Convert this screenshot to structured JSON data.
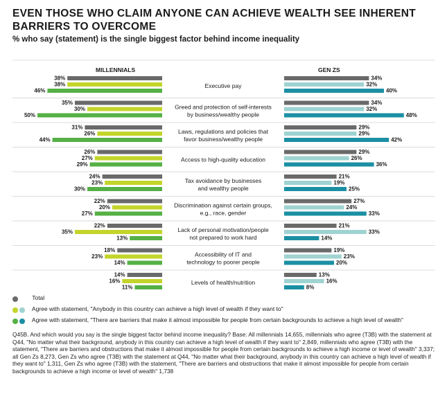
{
  "title": "EVEN THOSE WHO CLAIM ANYONE CAN ACHIEVE WEALTH SEE INHERENT BARRIERS TO OVERCOME",
  "subtitle": "% who say (statement) is the single biggest factor behind income inequality",
  "colors": {
    "mill_total": "#6a6a6a",
    "mill_agree": "#c3d52a",
    "mill_barriers": "#55b045",
    "gen_total": "#6a6a6a",
    "gen_agree": "#9fd3d2",
    "gen_barriers": "#1b8fa3"
  },
  "legend": {
    "total": "Total",
    "agree": "Agree with statement, \"Anybody in this country can achieve a high level of wealth if they want to\"",
    "barriers": "Agree with statement, \"There are barriers  that make it almost impossible for people from certain backgrounds to achieve a high level of wealth\""
  },
  "footnote": "Q45B. And which would you say is the single biggest factor behind income inequality? Base: All millennials 14,655, millennials who agree (T3B) with the statement at Q44, \"No matter what their background, anybody in this country can achieve a high level of wealth if they want to\" 2,849, millennials who agree (T3B) with the statement, \"There are barriers and obstructions that make it almost impossible for people from certain backgrounds to achieve a high income or level of wealth\" 3,337; all Gen Zs 8,273, Gen Zs who agree (T3B) with the statement at Q44, \"No matter what their background, anybody in this country can achieve a high level of wealth if they want to\" 1,311, Gen Zs who agree (T3B) with the statement, \"There are barriers and obstructions that make it almost impossible for people from certain backgrounds to achieve a high income or level of wealth\" 1,738",
  "chart_data": {
    "type": "bar",
    "orientation": "horizontal",
    "layout": "butterfly",
    "unit": "%",
    "panels": [
      "MILLENNIALS",
      "GEN ZS"
    ],
    "categories": [
      "Executive pay",
      "Greed and protection of self-interests by business/wealthy people",
      "Laws, regulations and policies that favor business/wealthy people",
      "Access to high-quality education",
      "Tax avoidance by businesses and wealthy people",
      "Discrimination against certain groups, e.g., race, gender",
      "Lack of personal motivation/people not prepared to work hard",
      "Accessibility of IT and technology to poorer people",
      "Levels of health/nutrition"
    ],
    "category_lines": [
      [
        "Executive pay"
      ],
      [
        "Greed and protection of self-interests",
        "by business/wealthy people"
      ],
      [
        "Laws, regulations and policies that",
        "favor business/wealthy people"
      ],
      [
        "Access to high-quality education"
      ],
      [
        "Tax avoidance by businesses",
        "and wealthy people"
      ],
      [
        "Discrimination against certain groups,",
        "e.g., race, gender"
      ],
      [
        "Lack of personal motivation/people",
        "not prepared to work hard"
      ],
      [
        "Accessibility of IT and",
        "technology to poorer people"
      ],
      [
        "Levels of health/nutrition"
      ]
    ],
    "millennials": [
      {
        "series": "total",
        "values": [
          38,
          35,
          31,
          26,
          24,
          22,
          22,
          18,
          14
        ]
      },
      {
        "series": "agree",
        "values": [
          38,
          30,
          26,
          27,
          23,
          20,
          35,
          23,
          16
        ]
      },
      {
        "series": "barriers",
        "values": [
          46,
          50,
          44,
          29,
          30,
          27,
          13,
          14,
          11
        ]
      }
    ],
    "gen_zs": [
      {
        "series": "total",
        "values": [
          34,
          34,
          29,
          29,
          21,
          27,
          21,
          19,
          13
        ]
      },
      {
        "series": "agree",
        "values": [
          32,
          32,
          29,
          26,
          19,
          24,
          33,
          23,
          16
        ]
      },
      {
        "series": "barriers",
        "values": [
          40,
          48,
          42,
          36,
          25,
          33,
          14,
          20,
          8
        ]
      }
    ]
  }
}
